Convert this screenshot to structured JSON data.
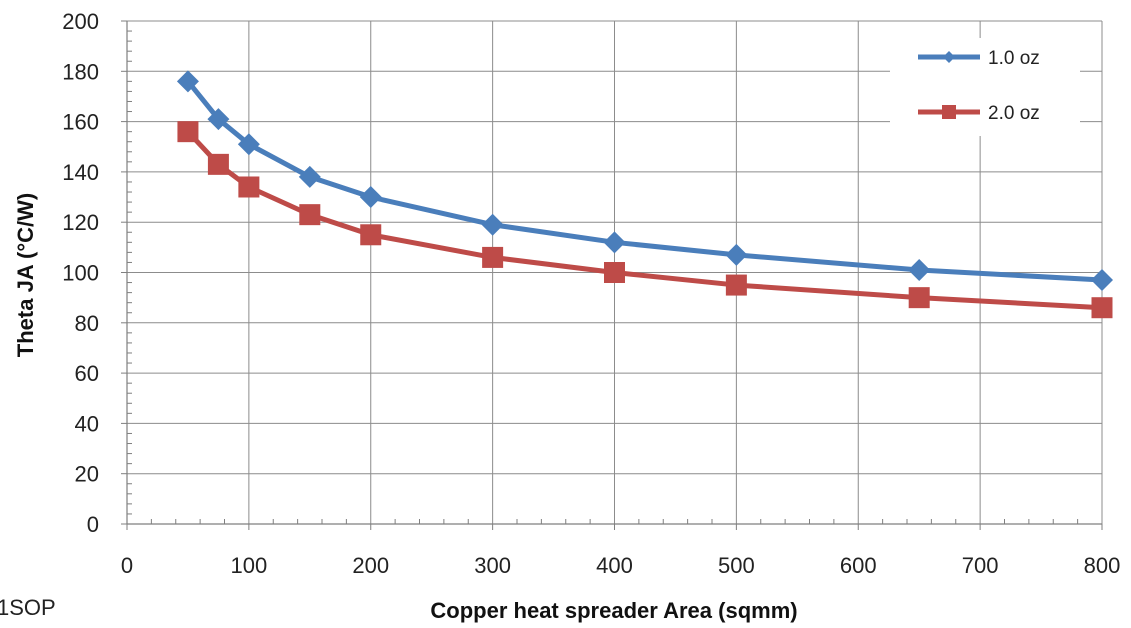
{
  "corner_label": "1SOP",
  "chart_data": {
    "type": "line",
    "xlabel": "Copper heat spreader Area (sqmm)",
    "ylabel": "Theta JA (°C/W)",
    "xlim": [
      0,
      800
    ],
    "ylim": [
      0,
      200
    ],
    "x_ticks": [
      0,
      100,
      200,
      300,
      400,
      500,
      600,
      700,
      800
    ],
    "y_ticks": [
      0,
      20,
      40,
      60,
      80,
      100,
      120,
      140,
      160,
      180,
      200
    ],
    "grid": true,
    "legend_position": "top-right",
    "series": [
      {
        "name": "1.0 oz",
        "color": "#4a7ebb",
        "marker": "diamond",
        "x": [
          50,
          75,
          100,
          150,
          200,
          300,
          400,
          500,
          650,
          800
        ],
        "y": [
          176,
          161,
          151,
          138,
          130,
          119,
          112,
          107,
          101,
          97
        ]
      },
      {
        "name": "2.0 oz",
        "color": "#be4b48",
        "marker": "square",
        "x": [
          50,
          75,
          100,
          150,
          200,
          300,
          400,
          500,
          650,
          800
        ],
        "y": [
          156,
          143,
          134,
          123,
          115,
          106,
          100,
          95,
          90,
          86
        ]
      }
    ]
  }
}
